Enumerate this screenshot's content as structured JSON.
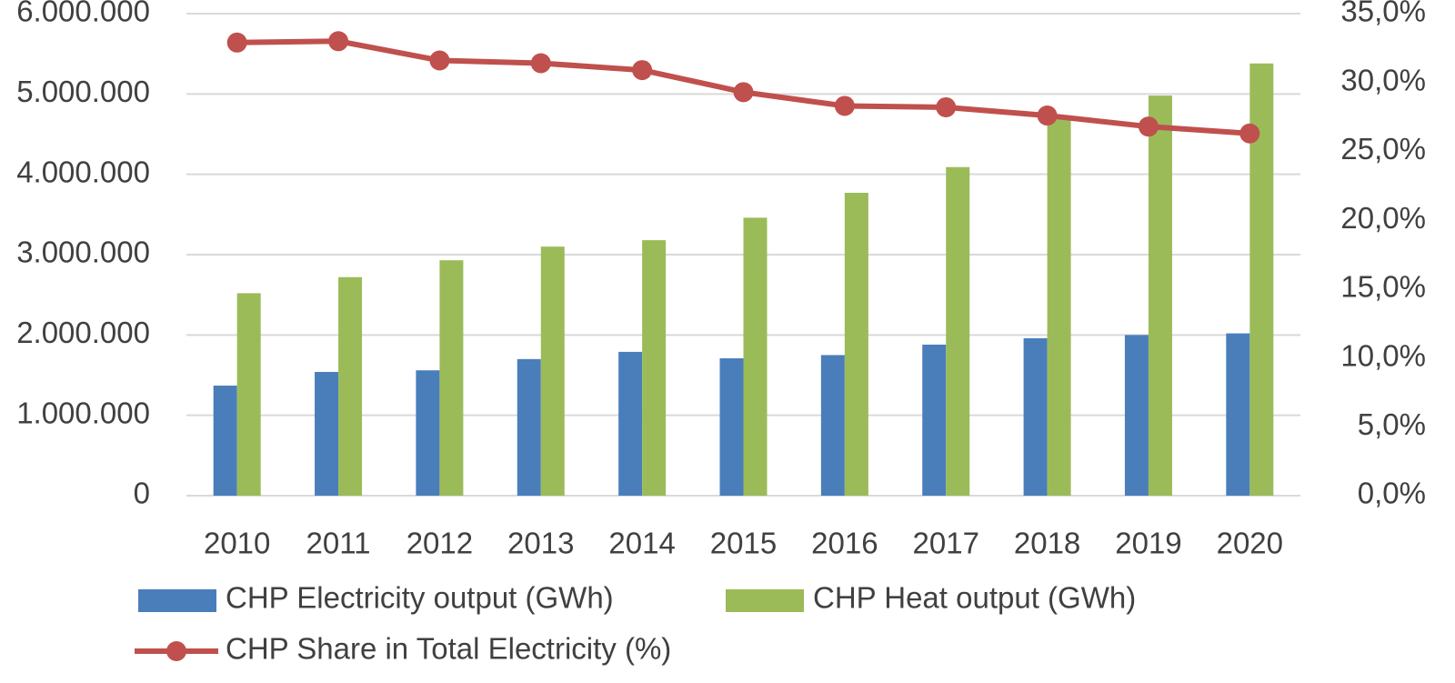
{
  "chart_data": {
    "type": "bar",
    "categories": [
      "2010",
      "2011",
      "2012",
      "2013",
      "2014",
      "2015",
      "2016",
      "2017",
      "2018",
      "2019",
      "2020"
    ],
    "series": [
      {
        "name": "CHP Electricity output (GWh)",
        "color": "#4a7ebb",
        "type": "bar",
        "values": [
          1370000,
          1540000,
          1560000,
          1700000,
          1790000,
          1710000,
          1750000,
          1880000,
          1960000,
          2000000,
          2020000
        ]
      },
      {
        "name": "CHP Heat output (GWh)",
        "color": "#9bbb59",
        "type": "bar",
        "values": [
          2520000,
          2720000,
          2930000,
          3100000,
          3180000,
          3460000,
          3770000,
          4090000,
          4700000,
          4980000,
          5380000
        ]
      },
      {
        "name": "CHP Share in Total Electricity (%)",
        "color": "#c0504d",
        "type": "line",
        "axis": "y2",
        "values": [
          32.9,
          33.0,
          31.6,
          31.4,
          30.9,
          29.3,
          28.3,
          28.2,
          27.6,
          26.8,
          26.3
        ]
      }
    ],
    "ylim": [
      0,
      6000000
    ],
    "yticks": [
      0,
      {
        "value": 1000000,
        "label": "1.000.000"
      },
      {
        "value": 2000000,
        "label": "2.000.000"
      },
      {
        "value": 3000000,
        "label": "3.000.000"
      },
      {
        "value": 4000000,
        "label": "4.000.000"
      },
      {
        "value": 5000000,
        "label": "5.000.000"
      },
      {
        "value": 6000000,
        "label": "6.000.000"
      }
    ],
    "y2lim": [
      0,
      35
    ],
    "y2ticks": [
      {
        "value": 0,
        "label": "0,0%"
      },
      {
        "value": 5,
        "label": "5,0%"
      },
      {
        "value": 10,
        "label": "10,0%"
      },
      {
        "value": 15,
        "label": "15,0%"
      },
      {
        "value": 20,
        "label": "20,0%"
      },
      {
        "value": 25,
        "label": "25,0%"
      },
      {
        "value": 30,
        "label": "30,0%"
      },
      {
        "value": 35,
        "label": "35,0%"
      }
    ],
    "grid": true,
    "legend": "bottom"
  }
}
